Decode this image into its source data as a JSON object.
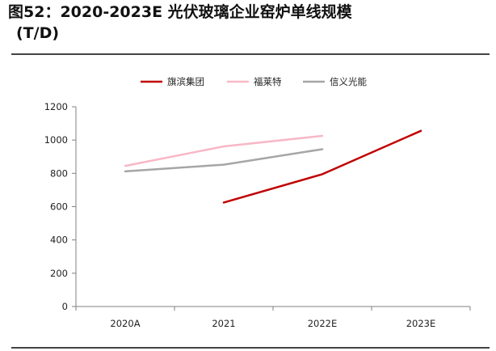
{
  "header": {
    "title_line1": "图52：2020-2023E 光伏玻璃企业窑炉单线规模",
    "title_line2": "(T/D)"
  },
  "chart_data": {
    "type": "line",
    "title": "图52：2020-2023E 光伏玻璃企业窑炉单线规模 (T/D)",
    "xlabel": "",
    "ylabel": "",
    "categories": [
      "2020A",
      "2021",
      "2022E",
      "2023E"
    ],
    "ylim": [
      0,
      1200
    ],
    "yticks": [
      0,
      200,
      400,
      600,
      800,
      1000,
      1200
    ],
    "grid": false,
    "legend_position": "top-center",
    "series": [
      {
        "name": "旗滨集团",
        "color": "#C00000",
        "values": [
          null,
          625,
          795,
          1055
        ]
      },
      {
        "name": "福莱特",
        "color": "#F8B8C6",
        "values": [
          845,
          962,
          1025,
          null
        ]
      },
      {
        "name": "信义光能",
        "color": "#A6A6A6",
        "values": [
          812,
          852,
          945,
          null
        ]
      }
    ]
  }
}
